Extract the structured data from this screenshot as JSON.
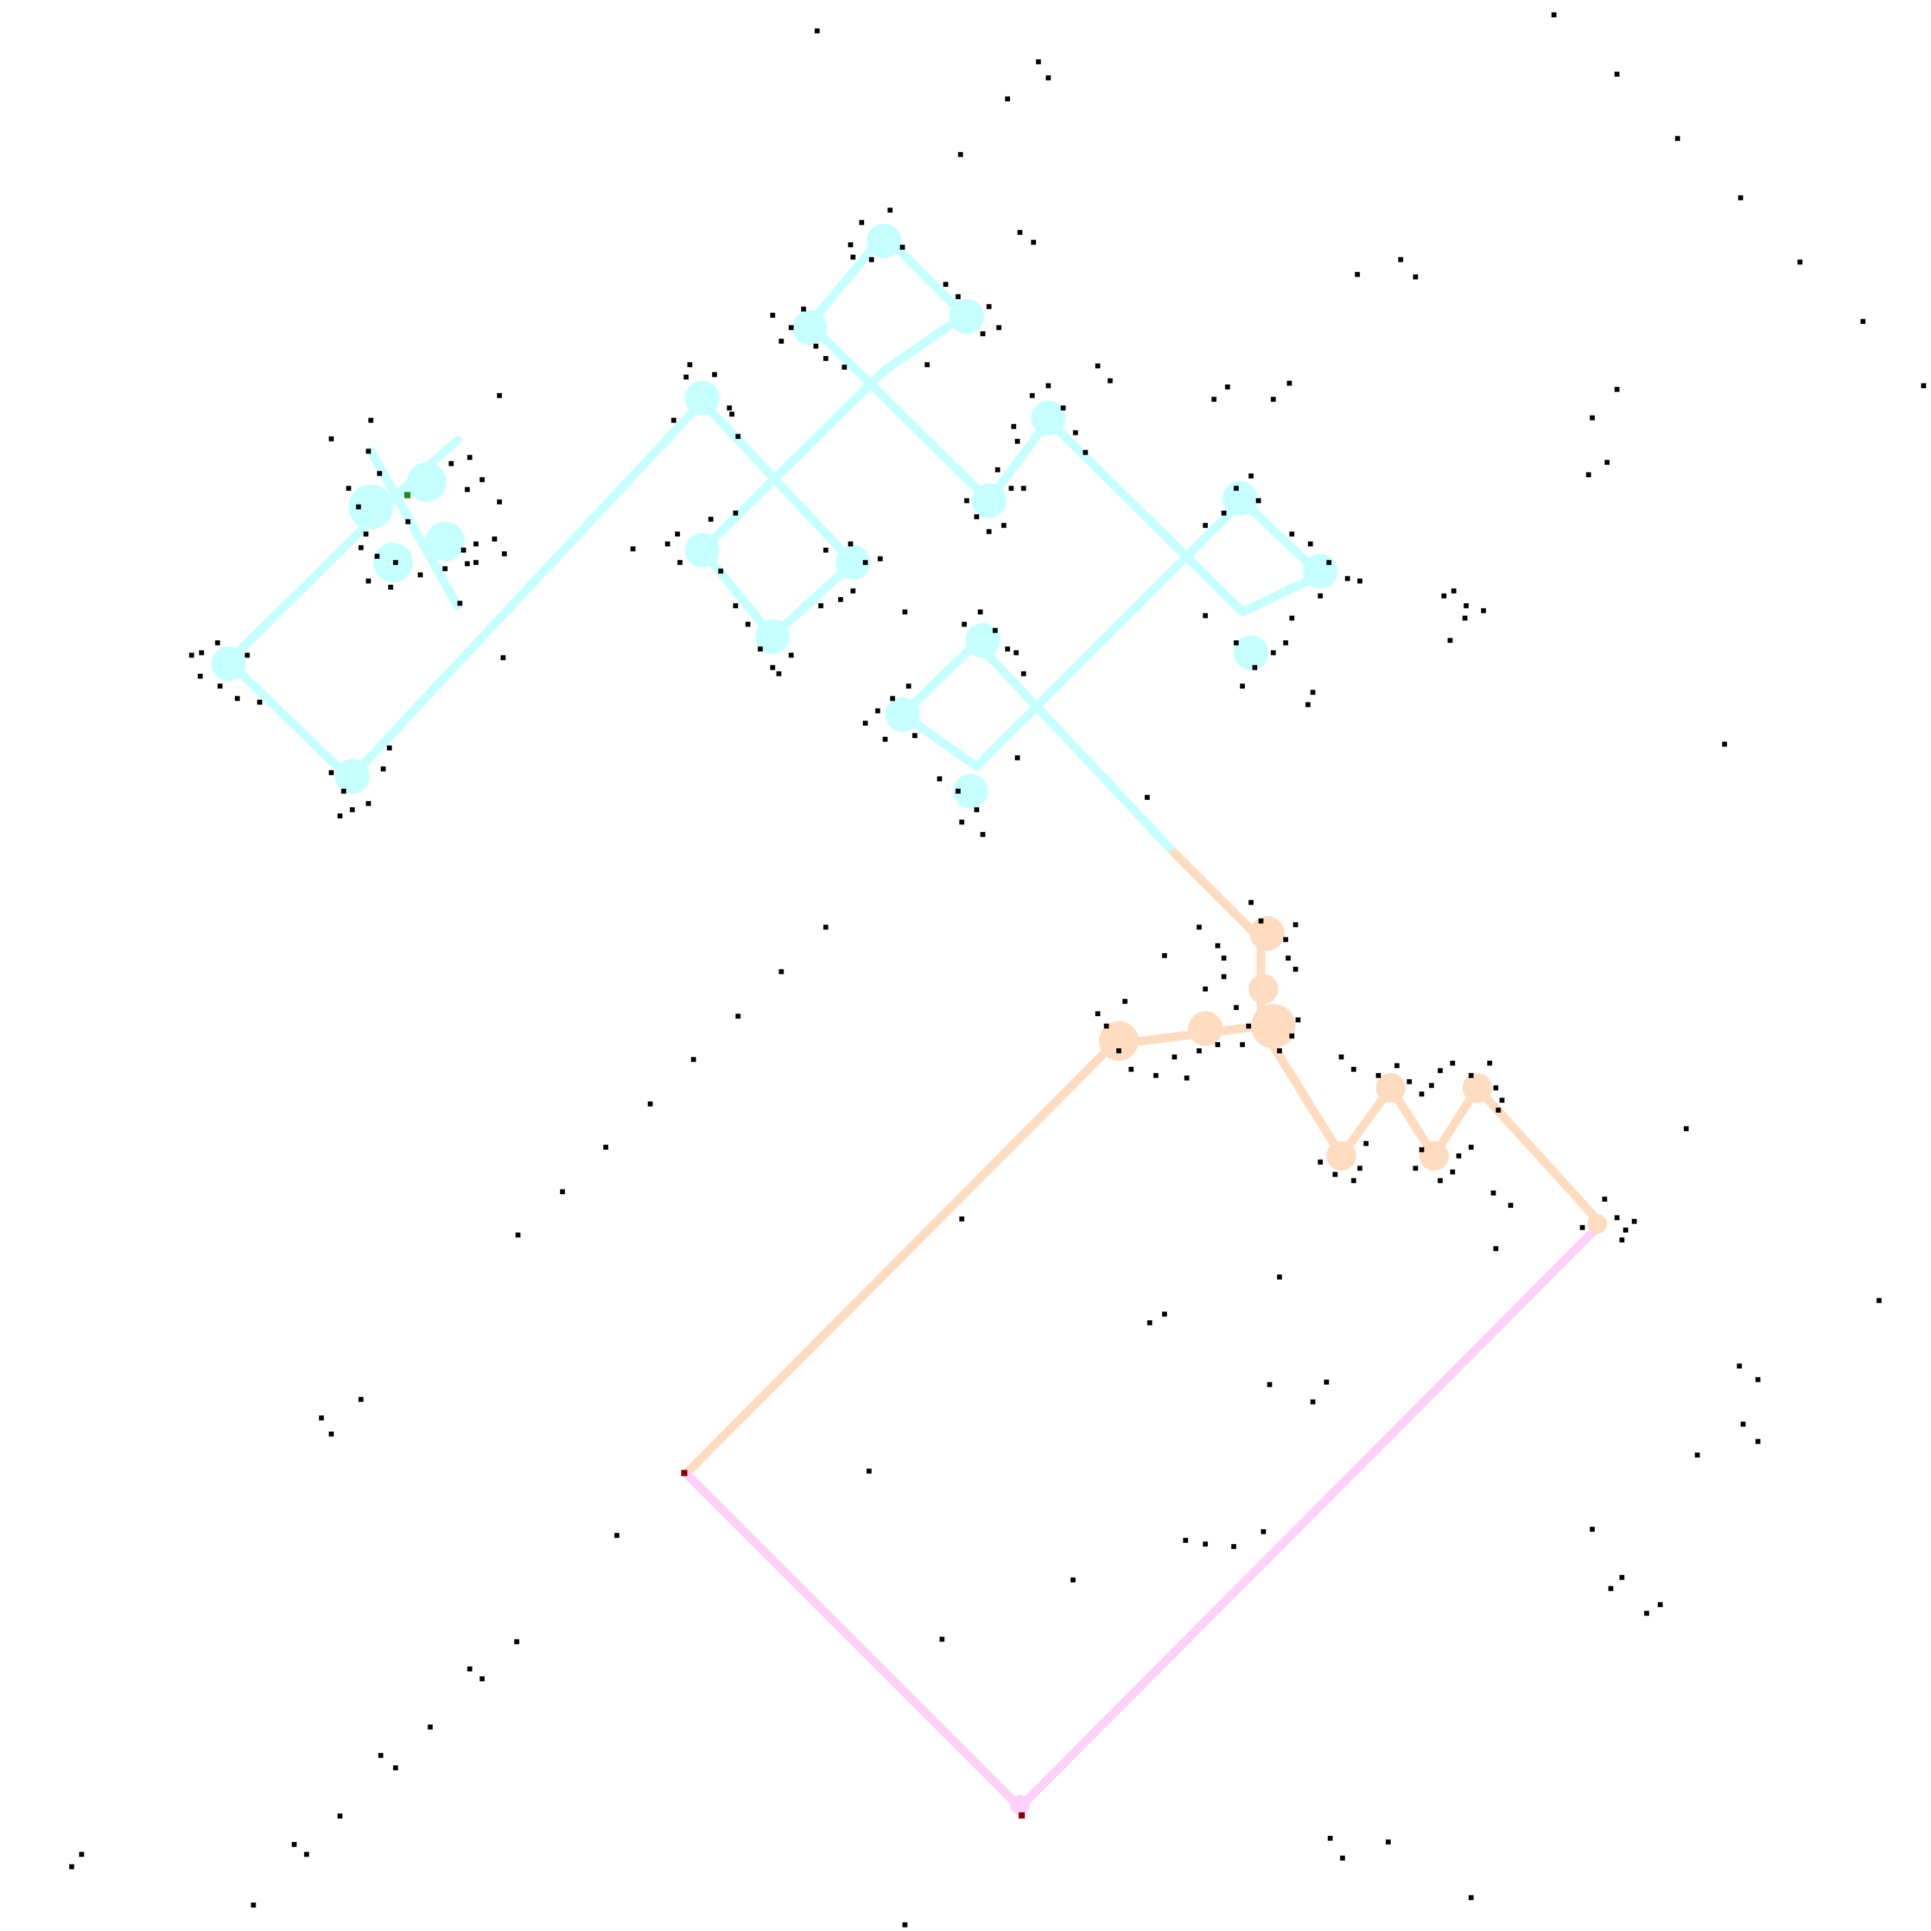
{
  "scene": {
    "kind": "grid-automaton-path-trace",
    "background_color": "#ffffff"
  },
  "colors": {
    "cyan_path": "#c6ffff",
    "peach_path": "#ffdcc0",
    "pink_path": "#ffd0f8",
    "particles": "#000000",
    "start_marker": "#1a8a1a",
    "end_marker": "#8b0000"
  },
  "paths": [
    {
      "name": "cyan-path",
      "color_key": "cyan_path"
    },
    {
      "name": "peach-path",
      "color_key": "peach_path"
    },
    {
      "name": "pink-path",
      "color_key": "pink_path"
    }
  ],
  "markers": [
    {
      "name": "start-marker",
      "color_key": "start_marker"
    },
    {
      "name": "end-marker-left",
      "color_key": "end_marker"
    },
    {
      "name": "end-marker-bottom",
      "color_key": "end_marker"
    }
  ]
}
